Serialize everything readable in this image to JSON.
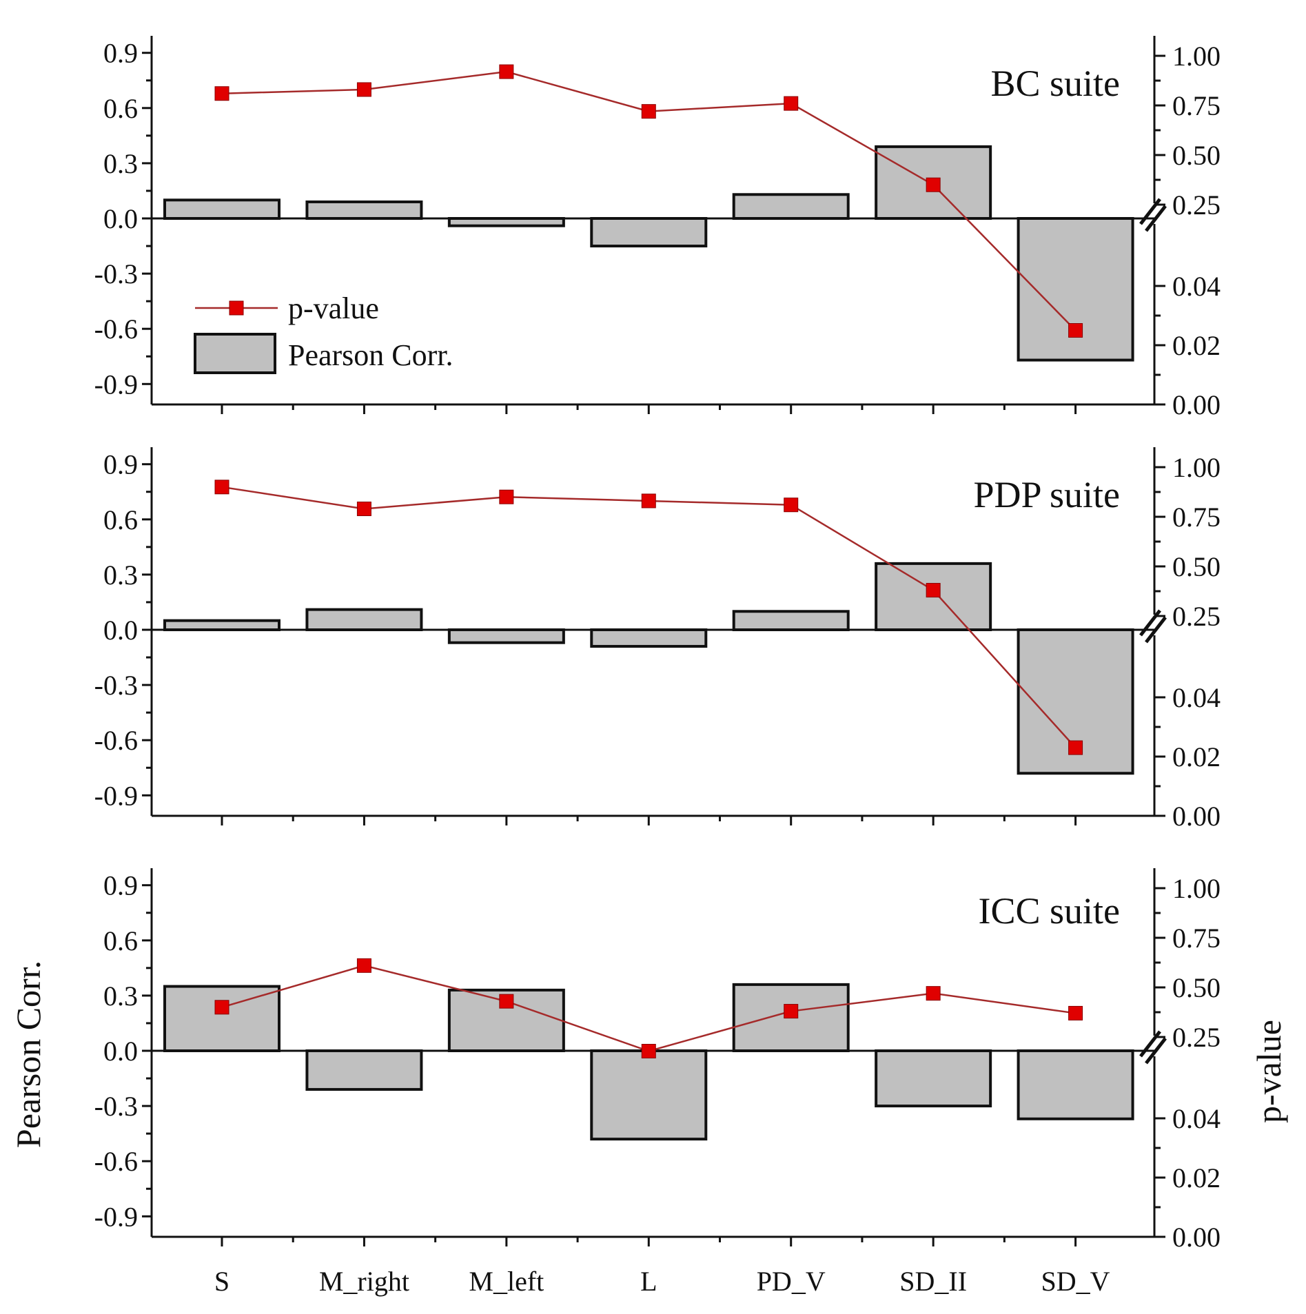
{
  "chart_data": {
    "type": "bar",
    "categories": [
      "S",
      "M_right",
      "M_left",
      "L",
      "PD_V",
      "SD_II",
      "SD_V"
    ],
    "left_axis": {
      "label": "Pearson Corr.",
      "range": [
        -1.0,
        1.0
      ],
      "ticks": [
        "0.9",
        "0.6",
        "0.3",
        "0.0",
        "-0.3",
        "-0.6",
        "-0.9"
      ],
      "tick_values": [
        0.9,
        0.6,
        0.3,
        0.0,
        -0.3,
        -0.6,
        -0.9
      ]
    },
    "right_axis": {
      "label": "p-value",
      "broken": true,
      "upper_ticks": [
        "1.00",
        "0.75",
        "0.50",
        "0.25"
      ],
      "upper_tick_values": [
        1.0,
        0.75,
        0.5,
        0.25
      ],
      "lower_ticks": [
        "0.04",
        "0.02",
        "0.00"
      ],
      "lower_tick_values": [
        0.04,
        0.02,
        0.0
      ]
    },
    "legend": {
      "placement": "left-inside-top-panel",
      "line_entry": "p-value",
      "bar_entry": "Pearson Corr."
    },
    "colors": {
      "bar_fill": "#c0c0c0",
      "line": "#a52a2a",
      "marker": "#e00000"
    },
    "panels": [
      {
        "label": "BC suite",
        "series": [
          {
            "name": "Pearson Corr.",
            "type": "bar",
            "values": [
              0.1,
              0.09,
              -0.04,
              -0.15,
              0.13,
              0.39,
              -0.77
            ]
          },
          {
            "name": "p-value",
            "type": "line",
            "values": [
              0.81,
              0.83,
              0.92,
              0.72,
              0.76,
              0.35,
              0.025
            ]
          }
        ]
      },
      {
        "label": "PDP suite",
        "series": [
          {
            "name": "Pearson Corr.",
            "type": "bar",
            "values": [
              0.05,
              0.11,
              -0.07,
              -0.09,
              0.1,
              0.36,
              -0.78
            ]
          },
          {
            "name": "p-value",
            "type": "line",
            "values": [
              0.9,
              0.79,
              0.85,
              0.83,
              0.81,
              0.38,
              0.023
            ]
          }
        ]
      },
      {
        "label": "ICC suite",
        "series": [
          {
            "name": "Pearson Corr.",
            "type": "bar",
            "values": [
              0.35,
              -0.21,
              0.33,
              -0.48,
              0.36,
              -0.3,
              -0.37
            ]
          },
          {
            "name": "p-value",
            "type": "line",
            "values": [
              0.4,
              0.61,
              0.43,
              0.24,
              0.38,
              0.47,
              0.37
            ]
          }
        ]
      }
    ]
  }
}
